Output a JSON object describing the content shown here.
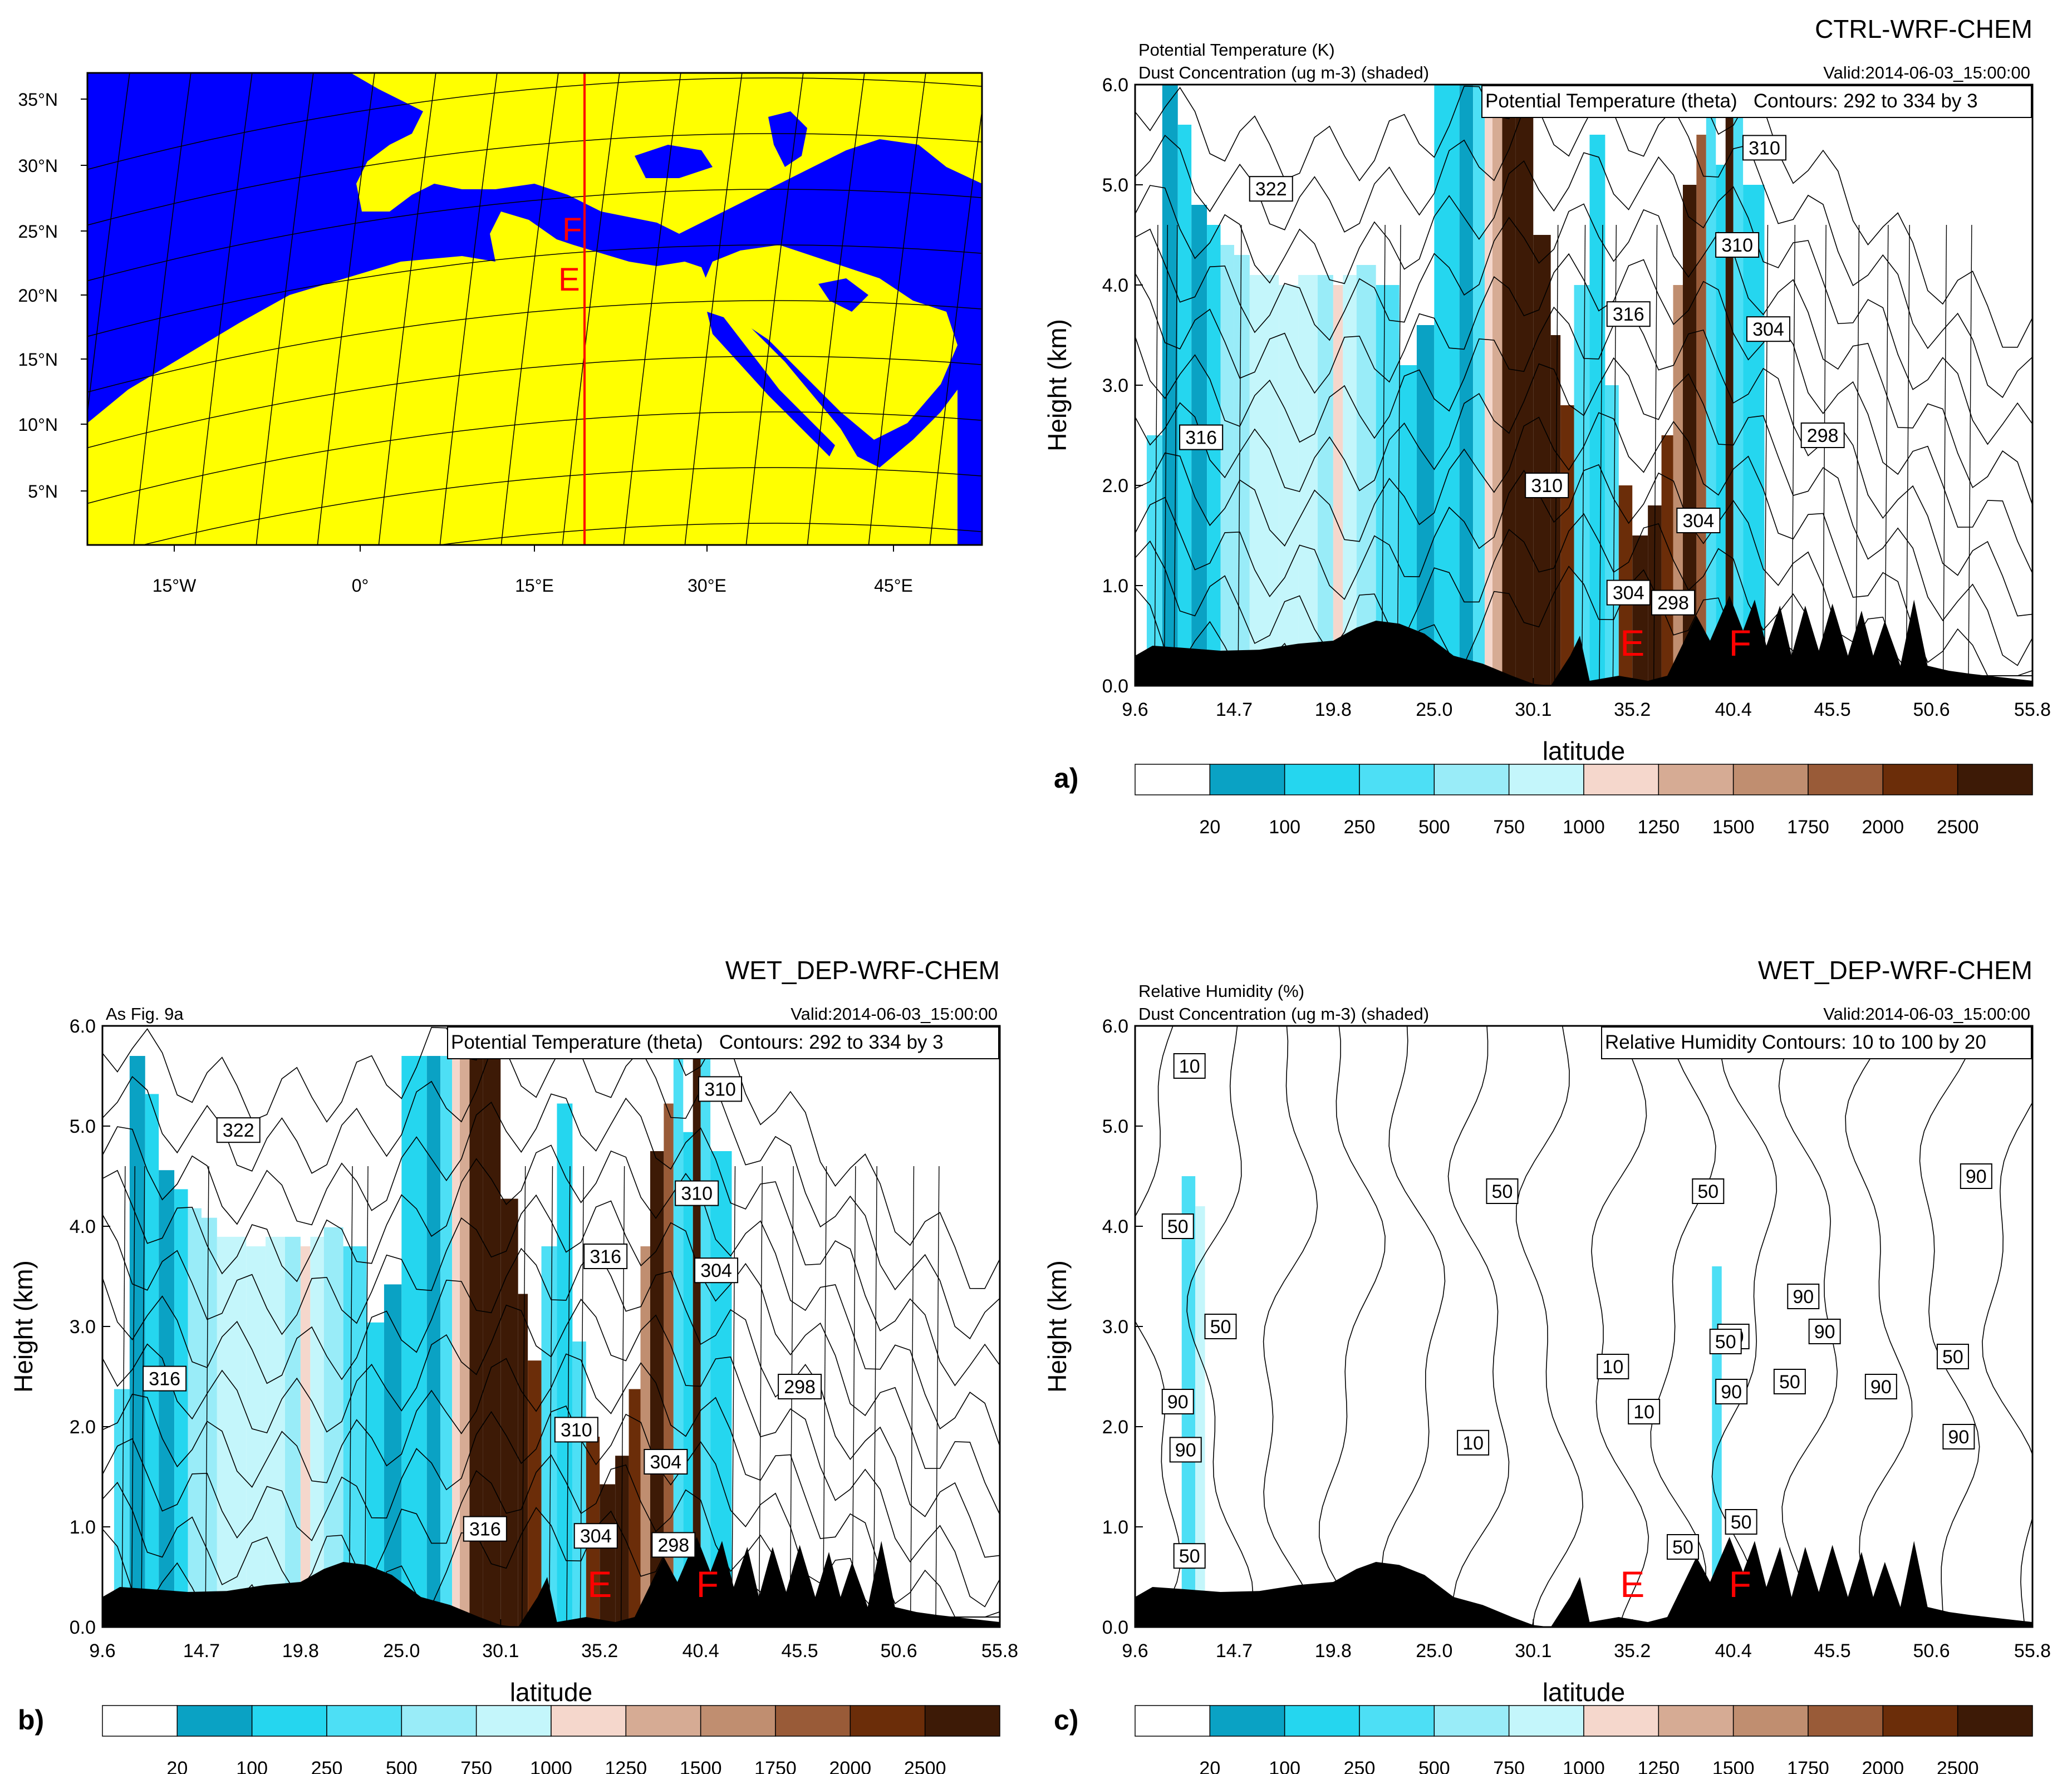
{
  "map": {
    "lat_ticks": [
      "35°N",
      "30°N",
      "25°N",
      "20°N",
      "15°N",
      "10°N",
      "5°N"
    ],
    "lon_ticks": [
      "15°W",
      "0°",
      "15°E",
      "30°E",
      "45°E"
    ],
    "markers": [
      "F",
      "E"
    ],
    "colors": {
      "land": "#ffff00",
      "water": "#0000ff",
      "transect": "#ff0000"
    }
  },
  "panels": [
    {
      "id": "a",
      "letter": "a)",
      "title": "CTRL-WRF-CHEM",
      "top_left_1": "Potential Temperature (K)",
      "top_left_2": "Dust Concentration (ug m-3) (shaded)",
      "valid": "Valid:2014-06-03_15:00:00",
      "contour_info": "Potential Temperature (theta)   Contours: 292 to 334 by 3",
      "xlabel": "latitude",
      "ylabel": "Height (km)",
      "contour_labels": [
        "322",
        "316",
        "316",
        "310",
        "310",
        "316",
        "310",
        "304",
        "304",
        "304",
        "298",
        "298"
      ],
      "markers": [
        "E",
        "F"
      ]
    },
    {
      "id": "b",
      "letter": "b)",
      "title": "WET_DEP-WRF-CHEM",
      "top_left_1": "As Fig. 9a",
      "top_left_2": "",
      "valid": "Valid:2014-06-03_15:00:00",
      "contour_info": "Potential Temperature (theta)   Contours: 292 to 334 by 3",
      "xlabel": "latitude",
      "ylabel": "Height (km)",
      "contour_labels": [
        "322",
        "316",
        "316",
        "310",
        "310",
        "316",
        "310",
        "304",
        "304",
        "304",
        "298",
        "298"
      ],
      "markers": [
        "E",
        "F"
      ]
    },
    {
      "id": "c",
      "letter": "c)",
      "title": "WET_DEP-WRF-CHEM",
      "top_left_1": "Relative Humidity (%)",
      "top_left_2": "Dust Concentration (ug m-3) (shaded)",
      "valid": "Valid:2014-06-03_15:00:00",
      "contour_info": "Relative Humidity Contours: 10 to 100 by 20",
      "xlabel": "latitude",
      "ylabel": "Height (km)",
      "contour_labels": [
        "10",
        "50",
        "50",
        "90",
        "90",
        "10",
        "10",
        "10",
        "50",
        "50",
        "50",
        "90",
        "90",
        "90",
        "50",
        "50",
        "50",
        "50",
        "90",
        "50",
        "90",
        "90",
        "50"
      ],
      "markers": [
        "E",
        "F"
      ]
    }
  ],
  "chart_data": {
    "type": "heatmap",
    "x_ticks": [
      "9.6",
      "14.7",
      "19.8",
      "25.0",
      "30.1",
      "35.2",
      "40.4",
      "45.5",
      "50.6",
      "55.8"
    ],
    "xlim": [
      9.6,
      55.8
    ],
    "y_ticks": [
      "0.0",
      "1.0",
      "2.0",
      "3.0",
      "4.0",
      "5.0",
      "6.0"
    ],
    "ylim": [
      0,
      6
    ],
    "colorbar": {
      "labels": [
        "20",
        "100",
        "250",
        "500",
        "750",
        "1000",
        "1250",
        "1500",
        "1750",
        "2000",
        "2500"
      ],
      "colors": [
        "#ffffff",
        "#0aa2c4",
        "#25d6ef",
        "#4ddff5",
        "#99ecf8",
        "#c4f6fb",
        "#f5d7cc",
        "#d6ab94",
        "#c08e70",
        "#995b38",
        "#6b2d09",
        "#3d1a06"
      ]
    },
    "markers": {
      "E": 35.2,
      "F": 40.4
    }
  }
}
